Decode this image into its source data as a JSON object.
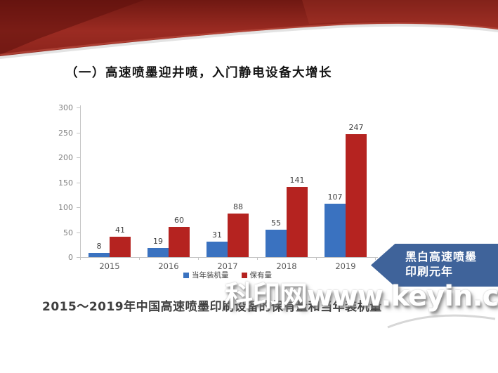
{
  "slide": {
    "title": "（一）高速喷墨迎井喷，入门静电设备大增长",
    "caption": "2015～2019年中国高速喷墨印刷设备的保有量和当年装机量",
    "badge": {
      "line1": "黑白高速喷墨",
      "line2": "印刷元年",
      "color": "#3f639a"
    },
    "watermark": "科印网www.keyin.cn"
  },
  "theme": {
    "ribbon_red_dark": "#6a140f",
    "ribbon_red_mid": "#9b2b22",
    "ribbon_red_light": "#ad4034",
    "bar_blue": "#3a72c0",
    "bar_red": "#b52320",
    "axis_gray": "#c4c4c4",
    "label_gray": "#7f7f7f"
  },
  "chart_data": {
    "type": "bar",
    "title": "",
    "xlabel": "",
    "ylabel": "",
    "categories": [
      "2015",
      "2016",
      "2017",
      "2018",
      "2019"
    ],
    "series": [
      {
        "name": "当年装机量",
        "color": "#3a72c0",
        "values": [
          8,
          19,
          31,
          55,
          107
        ]
      },
      {
        "name": "保有量",
        "color": "#b52320",
        "values": [
          41,
          60,
          88,
          141,
          247
        ]
      }
    ],
    "ylim": [
      0,
      300
    ],
    "ytick_step": 50,
    "grid": false,
    "legend_position": "bottom",
    "value_labels": true
  }
}
